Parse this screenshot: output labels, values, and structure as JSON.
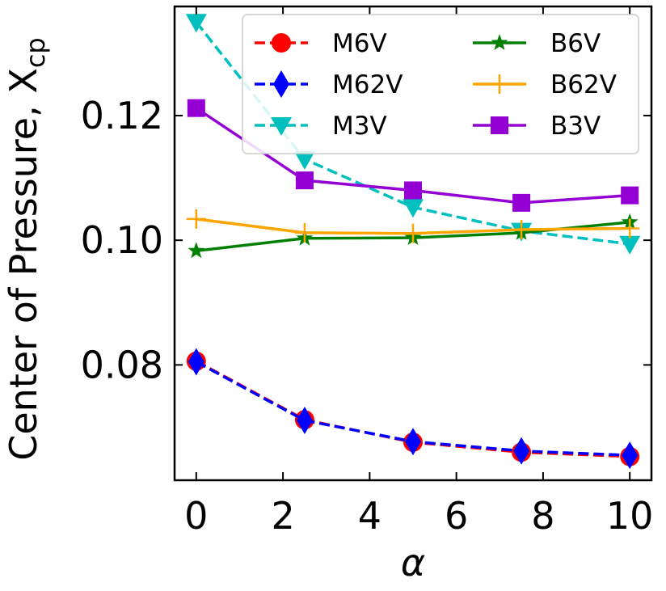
{
  "chart_data": {
    "type": "line",
    "title": "",
    "xlabel": "α",
    "ylabel": "Center of Pressure, X",
    "ylabel_subscript": "cp",
    "xlim": [
      -0.5,
      10.5
    ],
    "ylim": [
      0.0615,
      0.1375
    ],
    "xticks": [
      0,
      2,
      4,
      6,
      8,
      10
    ],
    "xtick_labels": [
      "0",
      "2",
      "4",
      "6",
      "8",
      "10"
    ],
    "yticks": [
      0.08,
      0.1,
      0.12
    ],
    "ytick_labels": [
      "0.08",
      "0.10",
      "0.12"
    ],
    "grid": false,
    "legend_position": "top-right",
    "x": [
      0,
      2.5,
      5,
      7.5,
      10
    ],
    "series": [
      {
        "name": "M6V",
        "color": "#ff0000",
        "linestyle": "dashed",
        "marker": "circle",
        "values": [
          0.0806,
          0.0712,
          0.0676,
          0.066,
          0.0653
        ]
      },
      {
        "name": "M62V",
        "color": "#0000ff",
        "linestyle": "dashed",
        "marker": "thin-diamond",
        "values": [
          0.0805,
          0.0711,
          0.0677,
          0.0662,
          0.0655
        ]
      },
      {
        "name": "M3V",
        "color": "#00bfbf",
        "linestyle": "dashed",
        "marker": "triangle-down",
        "values": [
          0.135,
          0.113,
          0.1053,
          0.1015,
          0.0994
        ]
      },
      {
        "name": "B6V",
        "color": "#008000",
        "linestyle": "solid",
        "marker": "star",
        "values": [
          0.0983,
          0.1003,
          0.1004,
          0.1012,
          0.1029
        ]
      },
      {
        "name": "B62V",
        "color": "#ffa500",
        "linestyle": "solid",
        "marker": "plus",
        "values": [
          0.1034,
          0.1012,
          0.1011,
          0.1017,
          0.1019
        ]
      },
      {
        "name": "B3V",
        "color": "#9400d3",
        "linestyle": "solid",
        "marker": "square",
        "values": [
          0.1212,
          0.1096,
          0.108,
          0.106,
          0.1072
        ]
      }
    ]
  }
}
